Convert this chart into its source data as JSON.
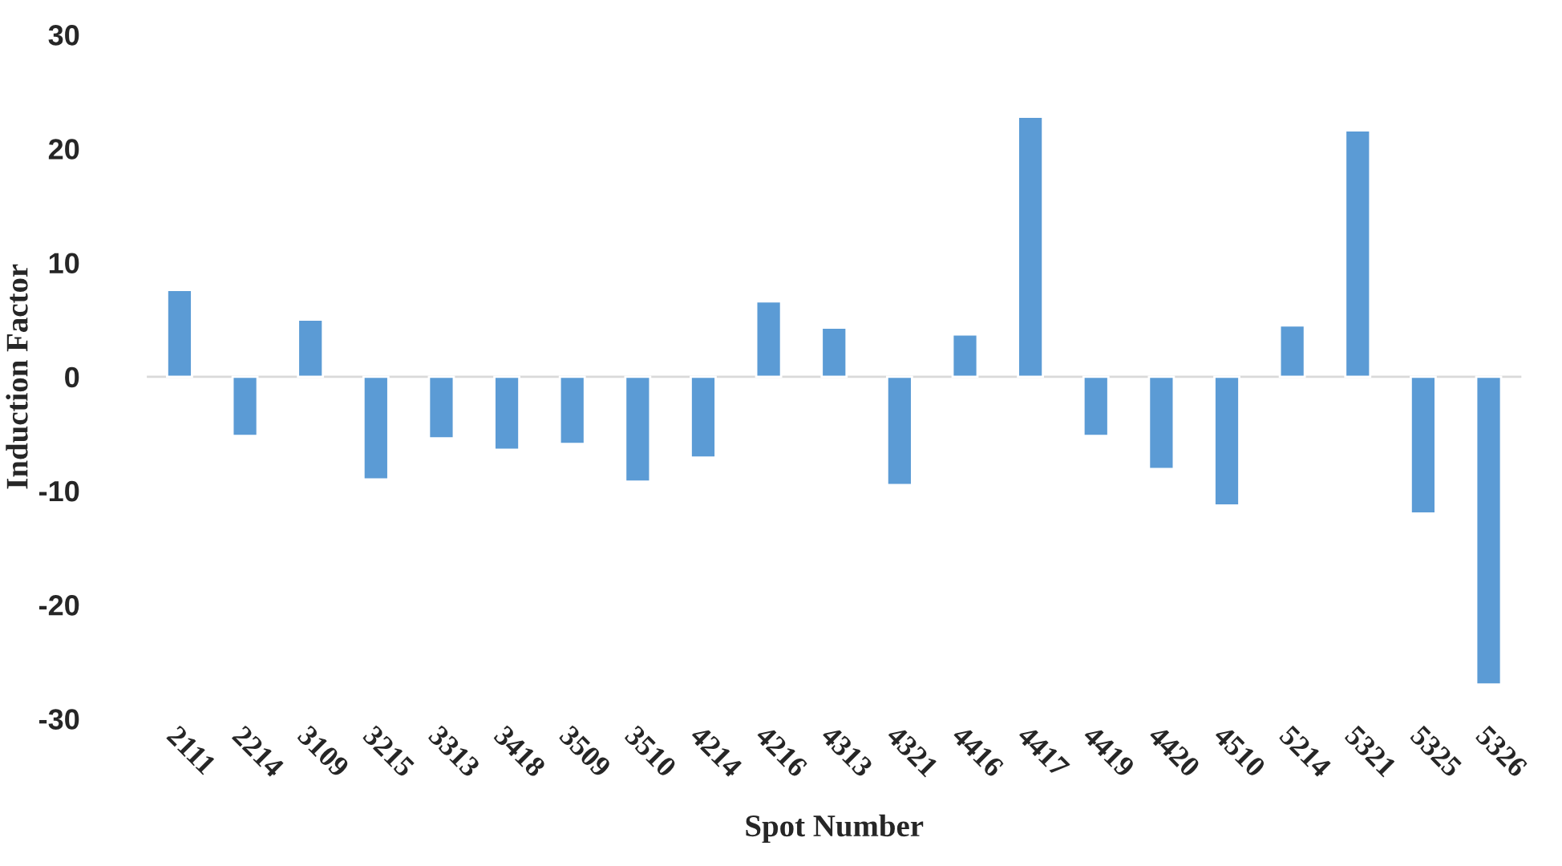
{
  "chart_data": {
    "type": "bar",
    "xlabel": "Spot Number",
    "ylabel": "Induction Factor",
    "categories": [
      "2111",
      "2214",
      "3109",
      "3215",
      "3313",
      "3418",
      "3509",
      "3510",
      "4214",
      "4216",
      "4313",
      "4321",
      "4416",
      "4417",
      "4419",
      "4420",
      "4510",
      "5214",
      "5321",
      "5325",
      "5326"
    ],
    "values": [
      7.6,
      -5.2,
      5.0,
      -9.0,
      -5.4,
      -6.4,
      -5.9,
      -9.2,
      -7.1,
      6.6,
      4.3,
      -9.5,
      3.7,
      22.8,
      -5.2,
      -8.1,
      -11.3,
      4.5,
      21.6,
      -12.0,
      -27.0
    ],
    "color": "#5b9bd5",
    "ylim": [
      -30,
      30
    ],
    "yticks": [
      -30,
      -20,
      -10,
      0,
      10,
      20,
      30
    ],
    "grid": false,
    "ref_lines": [
      {
        "axis": "y",
        "value": 0,
        "color": "#d9d9d9"
      }
    ]
  }
}
